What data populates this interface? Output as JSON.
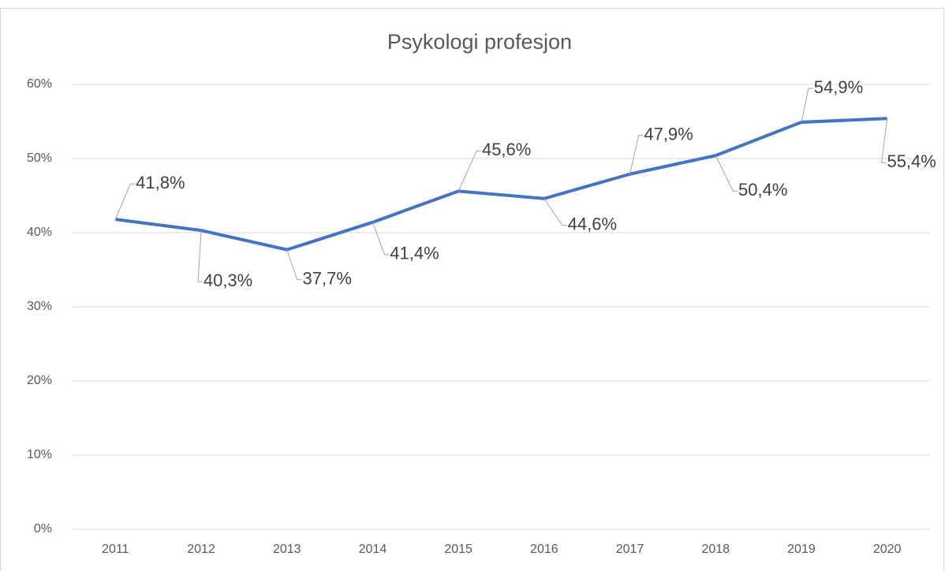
{
  "chart_data": {
    "type": "line",
    "title": "Psykologi profesjon",
    "categories": [
      "2011",
      "2012",
      "2013",
      "2014",
      "2015",
      "2016",
      "2017",
      "2018",
      "2019",
      "2020"
    ],
    "series": [
      {
        "name": "Psykologi profesjon",
        "color": "#4472c4",
        "values": [
          41.8,
          40.3,
          37.7,
          41.4,
          45.6,
          44.6,
          47.9,
          50.4,
          54.9,
          55.4
        ],
        "value_labels": [
          "41,8%",
          "40,3%",
          "37,7%",
          "41,4%",
          "45,6%",
          "44,6%",
          "47,9%",
          "50,4%",
          "54,9%",
          "55,4%"
        ]
      }
    ],
    "ylim": [
      0,
      60
    ],
    "yticks": [
      {
        "value": 0,
        "label": "0%"
      },
      {
        "value": 10,
        "label": "10%"
      },
      {
        "value": 20,
        "label": "20%"
      },
      {
        "value": 30,
        "label": "30%"
      },
      {
        "value": 40,
        "label": "40%"
      },
      {
        "value": 50,
        "label": "50%"
      },
      {
        "value": 60,
        "label": "60%"
      }
    ],
    "grid": true
  }
}
